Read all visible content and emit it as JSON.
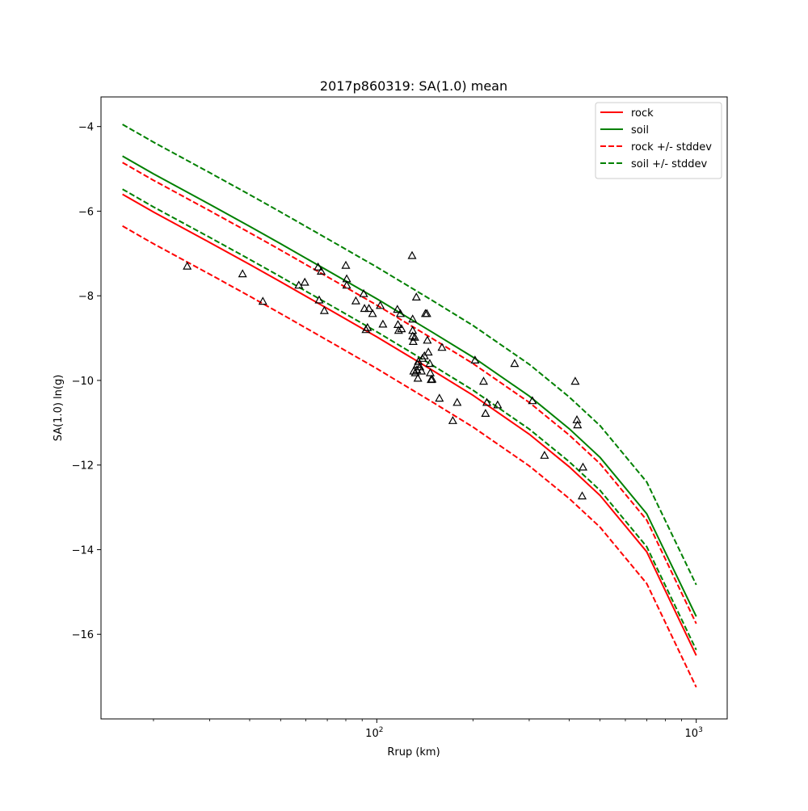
{
  "chart_data": {
    "type": "line",
    "title": "2017p860319: SA(1.0) mean",
    "xlabel": "Rrup (km)",
    "ylabel": "SA(1.0) ln(g)",
    "xscale": "log",
    "xlim": [
      13.7,
      1250
    ],
    "ylim": [
      -18.0,
      -3.3
    ],
    "x_ticks": [
      {
        "value": 100,
        "base": "10",
        "exp": "2"
      },
      {
        "value": 1000,
        "base": "10",
        "exp": "3"
      }
    ],
    "y_ticks": [
      {
        "value": -16,
        "label": "−16"
      },
      {
        "value": -14,
        "label": "−14"
      },
      {
        "value": -12,
        "label": "−12"
      },
      {
        "value": -10,
        "label": "−10"
      },
      {
        "value": -8,
        "label": "−8"
      },
      {
        "value": -6,
        "label": "−6"
      },
      {
        "value": -4,
        "label": "−4"
      }
    ],
    "grid": false,
    "legend_position": "top-right",
    "x": [
      16,
      20,
      30,
      40,
      50,
      70,
      100,
      150,
      200,
      300,
      400,
      500,
      700,
      1000
    ],
    "series": [
      {
        "name": "rock",
        "color": "#ff0000",
        "dash": "solid",
        "y": [
          -5.6,
          -6.02,
          -6.74,
          -7.26,
          -7.67,
          -8.3,
          -8.97,
          -9.77,
          -10.35,
          -11.27,
          -12.04,
          -12.72,
          -14.05,
          -16.5
        ]
      },
      {
        "name": "soil",
        "color": "#008000",
        "dash": "solid",
        "y": [
          -4.7,
          -5.12,
          -5.84,
          -6.36,
          -6.77,
          -7.4,
          -8.07,
          -8.87,
          -9.45,
          -10.37,
          -11.14,
          -11.82,
          -13.15,
          -15.58
        ]
      },
      {
        "name": "rock +/- stddev",
        "color": "#ff0000",
        "dash": "dashed",
        "y": [
          -6.35,
          -6.77,
          -7.49,
          -8.01,
          -8.42,
          -9.05,
          -9.72,
          -10.52,
          -11.1,
          -12.02,
          -12.79,
          -13.47,
          -14.8,
          -17.25
        ]
      },
      {
        "name": "",
        "color": "#ff0000",
        "dash": "dashed",
        "y": [
          -4.85,
          -5.27,
          -5.99,
          -6.51,
          -6.92,
          -7.55,
          -8.22,
          -9.02,
          -9.6,
          -10.52,
          -11.29,
          -11.97,
          -13.3,
          -15.75
        ]
      },
      {
        "name": "soil +/- stddev",
        "color": "#008000",
        "dash": "dashed",
        "y": [
          -5.48,
          -5.9,
          -6.62,
          -7.14,
          -7.55,
          -8.18,
          -8.85,
          -9.65,
          -10.23,
          -11.15,
          -11.92,
          -12.6,
          -13.93,
          -16.37
        ]
      },
      {
        "name": "",
        "color": "#008000",
        "dash": "dashed",
        "y": [
          -3.95,
          -4.37,
          -5.09,
          -5.61,
          -6.02,
          -6.65,
          -7.32,
          -8.12,
          -8.7,
          -9.62,
          -10.39,
          -11.07,
          -12.4,
          -14.83
        ]
      }
    ],
    "observations": {
      "marker": "triangle",
      "color": "#000000",
      "points": [
        [
          25.5,
          -7.3
        ],
        [
          38,
          -7.48
        ],
        [
          44,
          -8.13
        ],
        [
          57,
          -7.75
        ],
        [
          59.5,
          -7.68
        ],
        [
          65.5,
          -7.32
        ],
        [
          66,
          -8.1
        ],
        [
          67,
          -7.42
        ],
        [
          68.5,
          -8.35
        ],
        [
          80,
          -7.28
        ],
        [
          80.5,
          -7.75
        ],
        [
          80.5,
          -7.6
        ],
        [
          86,
          -8.12
        ],
        [
          91,
          -7.95
        ],
        [
          91.5,
          -8.3
        ],
        [
          92.5,
          -8.8
        ],
        [
          93.5,
          -8.75
        ],
        [
          94.5,
          -8.3
        ],
        [
          97,
          -8.42
        ],
        [
          102.5,
          -8.23
        ],
        [
          104.5,
          -8.67
        ],
        [
          116,
          -8.32
        ],
        [
          116.5,
          -8.68
        ],
        [
          117,
          -8.82
        ],
        [
          118.5,
          -8.42
        ],
        [
          119.5,
          -8.78
        ],
        [
          129,
          -7.05
        ],
        [
          129.5,
          -8.55
        ],
        [
          129.5,
          -8.82
        ],
        [
          129.5,
          -8.95
        ],
        [
          130,
          -9.08
        ],
        [
          130.5,
          -9.78
        ],
        [
          131.5,
          -8.98
        ],
        [
          132,
          -9.82
        ],
        [
          133,
          -8.03
        ],
        [
          133.5,
          -9.75
        ],
        [
          134,
          -9.62
        ],
        [
          134.5,
          -9.95
        ],
        [
          135,
          -9.55
        ],
        [
          136.5,
          -9.68
        ],
        [
          138,
          -9.78
        ],
        [
          139,
          -9.48
        ],
        [
          141,
          -9.42
        ],
        [
          142,
          -8.42
        ],
        [
          143.5,
          -8.42
        ],
        [
          144,
          -9.05
        ],
        [
          145,
          -9.33
        ],
        [
          146.5,
          -9.6
        ],
        [
          147,
          -9.82
        ],
        [
          148,
          -9.98
        ],
        [
          149,
          -9.97
        ],
        [
          157,
          -10.42
        ],
        [
          160,
          -9.22
        ],
        [
          173,
          -10.95
        ],
        [
          178.5,
          -10.52
        ],
        [
          203,
          -9.52
        ],
        [
          216,
          -10.02
        ],
        [
          219,
          -10.78
        ],
        [
          221,
          -10.52
        ],
        [
          239,
          -10.58
        ],
        [
          270,
          -9.6
        ],
        [
          307,
          -10.48
        ],
        [
          335,
          -11.77
        ],
        [
          418,
          -10.02
        ],
        [
          423,
          -10.93
        ],
        [
          425,
          -11.05
        ],
        [
          439.5,
          -12.73
        ],
        [
          442,
          -12.05
        ]
      ]
    }
  }
}
